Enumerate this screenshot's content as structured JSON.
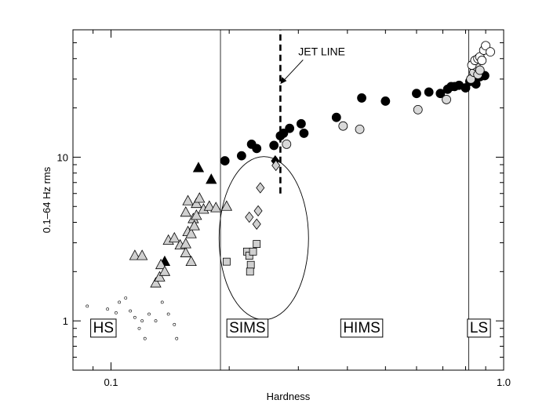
{
  "chart_data": {
    "type": "scatter",
    "title": "",
    "xlabel": "Hardness",
    "ylabel": "0.1–64 Hz rms",
    "xscale": "log",
    "yscale": "log",
    "xlim": [
      0.08,
      1.0
    ],
    "ylim": [
      0.5,
      60
    ],
    "xticks": [
      {
        "value": 0.1,
        "label": "0.1"
      },
      {
        "value": 1.0,
        "label": "1.0"
      }
    ],
    "yticks": [
      {
        "value": 1,
        "label": "1"
      },
      {
        "value": 10,
        "label": "10"
      }
    ],
    "grid": false,
    "vertical_lines": [
      0.19,
      0.815
    ],
    "jet_line": {
      "label": "JET LINE",
      "x": 0.27,
      "y_range": [
        6,
        60
      ],
      "arrow_to": [
        0.27,
        28
      ],
      "label_at": [
        0.3,
        42
      ]
    },
    "ellipse": {
      "cx": 0.245,
      "cy": 3.2,
      "label": ""
    },
    "region_labels": [
      {
        "text": "HS",
        "x": 0.09,
        "y": 0.85
      },
      {
        "text": "SIMS",
        "x": 0.2,
        "y": 0.85
      },
      {
        "text": "HIMS",
        "x": 0.39,
        "y": 0.85
      },
      {
        "text": "LS",
        "x": 0.82,
        "y": 0.85
      }
    ],
    "series": [
      {
        "marker": "filled-circle",
        "color": "#000000",
        "points": [
          [
            0.195,
            9.5
          ],
          [
            0.215,
            10.2
          ],
          [
            0.228,
            12.0
          ],
          [
            0.235,
            11.3
          ],
          [
            0.26,
            11.8
          ],
          [
            0.27,
            13.5
          ],
          [
            0.275,
            14.0
          ],
          [
            0.285,
            15.0
          ],
          [
            0.305,
            16.0
          ],
          [
            0.31,
            14.0
          ],
          [
            0.375,
            17.5
          ],
          [
            0.435,
            23.0
          ],
          [
            0.5,
            22.0
          ],
          [
            0.6,
            24.5
          ],
          [
            0.645,
            25.0
          ],
          [
            0.69,
            24.5
          ],
          [
            0.72,
            26.0
          ],
          [
            0.735,
            27.0
          ],
          [
            0.75,
            27.0
          ],
          [
            0.77,
            27.5
          ],
          [
            0.8,
            26.5
          ],
          [
            0.82,
            29.0
          ],
          [
            0.835,
            29.5
          ],
          [
            0.85,
            28.0
          ],
          [
            0.87,
            31.0
          ],
          [
            0.895,
            31.5
          ]
        ]
      },
      {
        "marker": "open-circle-gray",
        "color": "#d9d9d9",
        "points": [
          [
            0.28,
            12.0
          ],
          [
            0.39,
            15.5
          ],
          [
            0.43,
            14.8
          ],
          [
            0.605,
            19.5
          ],
          [
            0.715,
            22.5
          ],
          [
            0.825,
            30.0
          ],
          [
            0.84,
            33.0
          ],
          [
            0.85,
            36.0
          ],
          [
            0.86,
            32.0
          ],
          [
            0.87,
            34.0
          ]
        ]
      },
      {
        "marker": "open-circle-white",
        "color": "#ffffff",
        "points": [
          [
            0.83,
            36.5
          ],
          [
            0.845,
            39.0
          ],
          [
            0.86,
            40.0
          ],
          [
            0.87,
            41.0
          ],
          [
            0.88,
            39.0
          ],
          [
            0.89,
            45.0
          ],
          [
            0.9,
            48.0
          ],
          [
            0.925,
            44.0
          ]
        ]
      },
      {
        "marker": "filled-triangle",
        "color": "#000000",
        "points": [
          [
            0.167,
            8.6
          ],
          [
            0.18,
            7.3
          ],
          [
            0.137,
            2.3
          ]
        ]
      },
      {
        "marker": "open-triangle",
        "color": "#d0d0d0",
        "points": [
          [
            0.115,
            2.5
          ],
          [
            0.12,
            2.5
          ],
          [
            0.13,
            1.7
          ],
          [
            0.133,
            1.85
          ],
          [
            0.134,
            2.2
          ],
          [
            0.137,
            2.0
          ],
          [
            0.14,
            3.1
          ],
          [
            0.145,
            3.2
          ],
          [
            0.15,
            2.9
          ],
          [
            0.155,
            2.6
          ],
          [
            0.155,
            2.95
          ],
          [
            0.157,
            3.5
          ],
          [
            0.16,
            3.4
          ],
          [
            0.162,
            4.2
          ],
          [
            0.163,
            3.8
          ],
          [
            0.155,
            4.6
          ],
          [
            0.165,
            4.4
          ],
          [
            0.157,
            5.4
          ],
          [
            0.165,
            5.2
          ],
          [
            0.168,
            5.6
          ],
          [
            0.172,
            4.8
          ],
          [
            0.178,
            5.0
          ],
          [
            0.185,
            4.9
          ],
          [
            0.197,
            5.0
          ],
          [
            0.16,
            2.3
          ]
        ]
      },
      {
        "marker": "filled-diamond",
        "color": "#000000",
        "points": [
          [
            0.262,
            9.5
          ]
        ]
      },
      {
        "marker": "open-diamond",
        "color": "#d0d0d0",
        "points": [
          [
            0.263,
            8.9
          ],
          [
            0.24,
            6.5
          ],
          [
            0.237,
            4.7
          ],
          [
            0.225,
            4.3
          ],
          [
            0.235,
            3.9
          ]
        ]
      },
      {
        "marker": "open-square",
        "color": "#d0d0d0",
        "points": [
          [
            0.197,
            2.3
          ],
          [
            0.222,
            2.65
          ],
          [
            0.225,
            2.5
          ],
          [
            0.23,
            2.65
          ],
          [
            0.235,
            2.95
          ],
          [
            0.227,
            2.2
          ],
          [
            0.226,
            2.0
          ]
        ]
      },
      {
        "marker": "small-open-circle",
        "color": "#ffffff",
        "points": [
          [
            0.087,
            1.23
          ],
          [
            0.098,
            1.18
          ],
          [
            0.103,
            1.12
          ],
          [
            0.105,
            1.3
          ],
          [
            0.109,
            1.38
          ],
          [
            0.112,
            1.15
          ],
          [
            0.115,
            1.05
          ],
          [
            0.118,
            0.9
          ],
          [
            0.12,
            1.0
          ],
          [
            0.122,
            0.78
          ],
          [
            0.125,
            1.1
          ],
          [
            0.13,
            1.0
          ],
          [
            0.135,
            1.3
          ],
          [
            0.14,
            1.1
          ],
          [
            0.145,
            0.95
          ],
          [
            0.147,
            0.78
          ]
        ]
      }
    ]
  }
}
